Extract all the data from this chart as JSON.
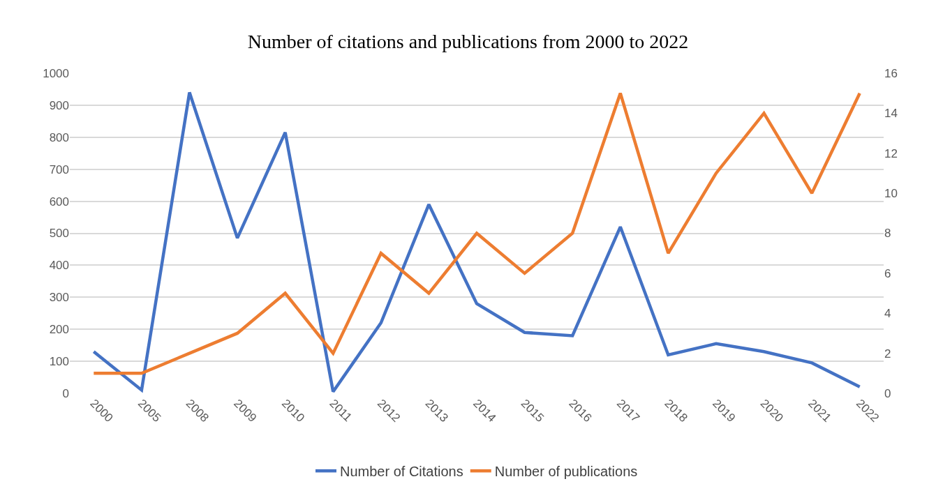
{
  "chart_data": {
    "type": "line",
    "title": "Number of citations and publications from 2000 to 2022",
    "categories": [
      "2000",
      "2005",
      "2008",
      "2009",
      "2010",
      "2011",
      "2012",
      "2013",
      "2014",
      "2015",
      "2016",
      "2017",
      "2018",
      "2019",
      "2020",
      "2021",
      "2022"
    ],
    "series": [
      {
        "name": "Number of Citations",
        "color": "#4472c4",
        "values": [
          130,
          10,
          940,
          485,
          815,
          5,
          220,
          590,
          280,
          190,
          180,
          520,
          120,
          155,
          130,
          95,
          20
        ]
      },
      {
        "name": "Number of publications",
        "color": "#ed7d31",
        "axis": "y2",
        "values": [
          1,
          1,
          2,
          3,
          5,
          2,
          7,
          5,
          8,
          6,
          8,
          15,
          7,
          11,
          14,
          10,
          15
        ]
      }
    ],
    "ylim": [
      0,
      1000
    ],
    "yticks": [
      0,
      100,
      200,
      300,
      400,
      500,
      600,
      700,
      800,
      900,
      1000
    ],
    "y2lim": [
      0,
      16
    ],
    "y2ticks": [
      0,
      2,
      4,
      6,
      8,
      10,
      12,
      14,
      16
    ],
    "grid": "y",
    "legend": "bottom",
    "marker": "none",
    "line_style": "solid"
  }
}
